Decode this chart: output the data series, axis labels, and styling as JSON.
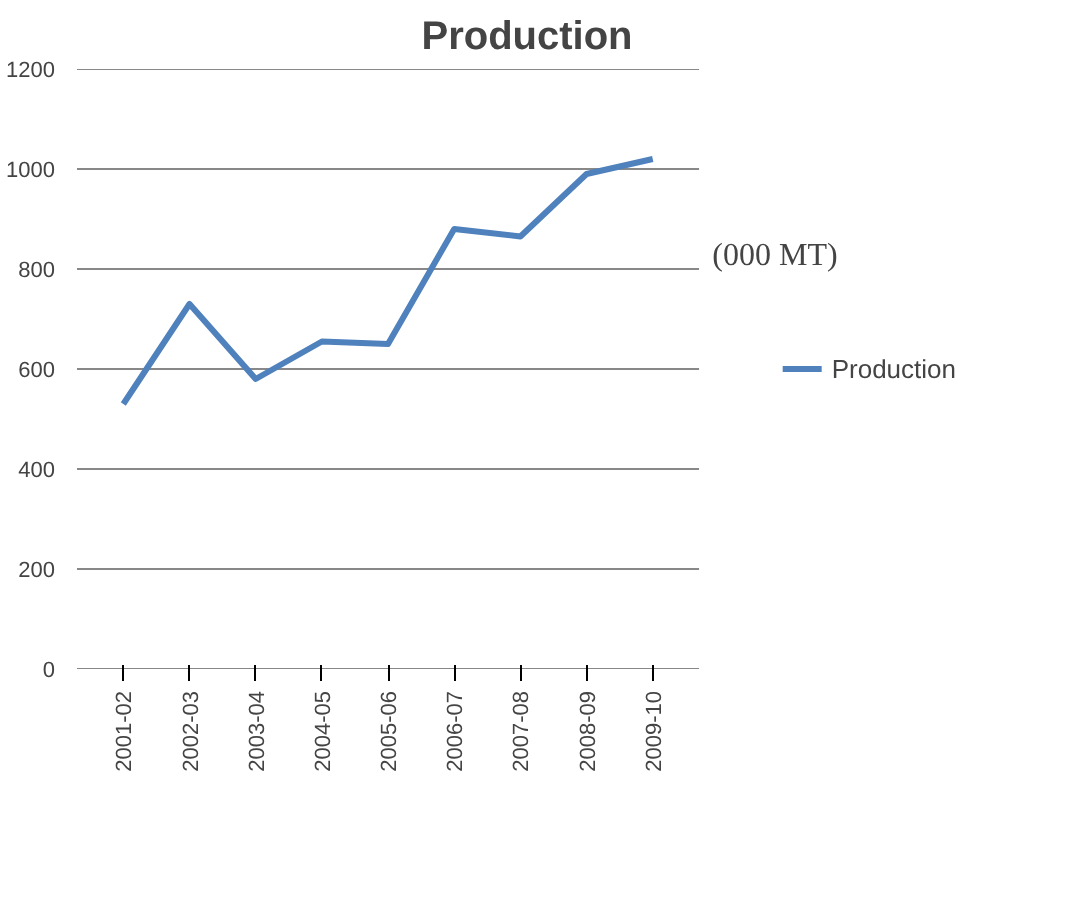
{
  "chart_data": {
    "type": "line",
    "title": "Production",
    "categories": [
      "2001-02",
      "2002-03",
      "2003-04",
      "2004-05",
      "2005-06",
      "2006-07",
      "2007-08",
      "2008-09",
      "2009-10"
    ],
    "series": [
      {
        "name": "Production",
        "color": "#4f81bd",
        "values": [
          530,
          730,
          580,
          655,
          650,
          880,
          865,
          990,
          1020
        ]
      }
    ],
    "ylim": [
      0,
      1200
    ],
    "yticks": [
      0,
      200,
      400,
      600,
      800,
      1000,
      1200
    ],
    "grid": "y",
    "legend": "right",
    "marker": "none",
    "line_style": "solid",
    "annotations": [
      "(000 MT)"
    ]
  }
}
